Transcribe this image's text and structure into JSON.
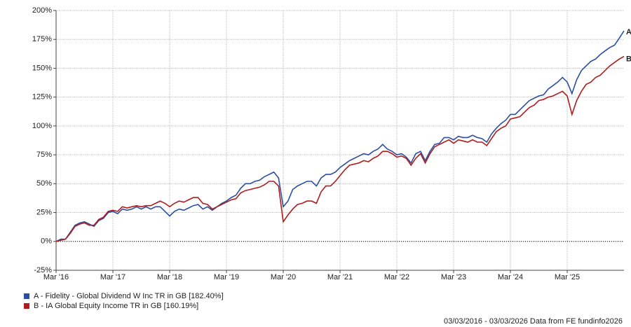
{
  "chart_data": {
    "type": "line",
    "x": [
      "2016-03",
      "2016-04",
      "2016-05",
      "2016-06",
      "2016-07",
      "2016-08",
      "2016-09",
      "2016-10",
      "2016-11",
      "2016-12",
      "2017-01",
      "2017-02",
      "2017-03",
      "2017-04",
      "2017-05",
      "2017-06",
      "2017-07",
      "2017-08",
      "2017-09",
      "2017-10",
      "2017-11",
      "2017-12",
      "2018-01",
      "2018-02",
      "2018-03",
      "2018-04",
      "2018-05",
      "2018-06",
      "2018-07",
      "2018-08",
      "2018-09",
      "2018-10",
      "2018-11",
      "2018-12",
      "2019-01",
      "2019-02",
      "2019-03",
      "2019-04",
      "2019-05",
      "2019-06",
      "2019-07",
      "2019-08",
      "2019-09",
      "2019-10",
      "2019-11",
      "2019-12",
      "2020-01",
      "2020-02",
      "2020-03",
      "2020-04",
      "2020-05",
      "2020-06",
      "2020-07",
      "2020-08",
      "2020-09",
      "2020-10",
      "2020-11",
      "2020-12",
      "2021-01",
      "2021-02",
      "2021-03",
      "2021-04",
      "2021-05",
      "2021-06",
      "2021-07",
      "2021-08",
      "2021-09",
      "2021-10",
      "2021-11",
      "2021-12",
      "2022-01",
      "2022-02",
      "2022-03",
      "2022-04",
      "2022-05",
      "2022-06",
      "2022-07",
      "2022-08",
      "2022-09",
      "2022-10",
      "2022-11",
      "2022-12",
      "2023-01",
      "2023-02",
      "2023-03",
      "2023-04",
      "2023-05",
      "2023-06",
      "2023-07",
      "2023-08",
      "2023-09",
      "2023-10",
      "2023-11",
      "2023-12",
      "2024-01",
      "2024-02",
      "2024-03",
      "2024-04",
      "2024-05",
      "2024-06",
      "2024-07",
      "2024-08",
      "2024-09",
      "2024-10",
      "2024-11",
      "2024-12",
      "2025-01",
      "2025-02",
      "2025-03",
      "2025-04",
      "2025-05",
      "2025-06",
      "2025-07",
      "2025-08",
      "2025-09",
      "2025-10",
      "2025-11",
      "2025-12",
      "2026-01",
      "2026-02",
      "2026-03"
    ],
    "series": [
      {
        "name": "A - Fidelity - Global Dividend W Inc TR in GB [182.40%]",
        "label": "A",
        "color": "#2b4ea2",
        "values": [
          0,
          2,
          2,
          8,
          14,
          16,
          17,
          15,
          13,
          18,
          20,
          25,
          26,
          24,
          28,
          27,
          28,
          30,
          28,
          30,
          28,
          30,
          30,
          26,
          22,
          26,
          28,
          27,
          29,
          31,
          32,
          28,
          30,
          27,
          30,
          33,
          35,
          38,
          40,
          46,
          50,
          50,
          52,
          53,
          56,
          58,
          60,
          55,
          30,
          35,
          45,
          48,
          50,
          52,
          52,
          48,
          55,
          58,
          58,
          60,
          64,
          67,
          70,
          72,
          74,
          76,
          75,
          78,
          80,
          84,
          80,
          78,
          75,
          76,
          73,
          68,
          76,
          78,
          70,
          78,
          84,
          85,
          90,
          90,
          88,
          91,
          90,
          90,
          92,
          90,
          89,
          86,
          93,
          98,
          102,
          105,
          110,
          110,
          114,
          118,
          122,
          124,
          126,
          127,
          132,
          135,
          138,
          142,
          138,
          128,
          140,
          148,
          152,
          156,
          158,
          162,
          165,
          168,
          170,
          176,
          182.4
        ]
      },
      {
        "name": "B - IA Global Equity Income TR in GB [160.19%]",
        "label": "B",
        "color": "#b01c1c",
        "values": [
          0,
          1,
          2,
          7,
          13,
          15,
          16,
          14,
          14,
          19,
          21,
          26,
          27,
          26,
          30,
          29,
          30,
          31,
          30,
          31,
          31,
          33,
          35,
          33,
          30,
          33,
          35,
          34,
          36,
          38,
          38,
          33,
          32,
          28,
          30,
          32,
          34,
          36,
          37,
          42,
          44,
          45,
          46,
          47,
          49,
          52,
          52,
          48,
          17,
          23,
          28,
          32,
          33,
          35,
          35,
          33,
          43,
          48,
          48,
          52,
          57,
          62,
          66,
          67,
          68,
          70,
          69,
          72,
          74,
          78,
          78,
          76,
          73,
          74,
          72,
          66,
          72,
          76,
          68,
          76,
          82,
          84,
          86,
          88,
          85,
          88,
          87,
          86,
          88,
          86,
          86,
          83,
          89,
          95,
          98,
          100,
          106,
          107,
          108,
          112,
          116,
          118,
          122,
          123,
          125,
          126,
          128,
          130,
          126,
          110,
          122,
          130,
          136,
          138,
          142,
          144,
          148,
          152,
          155,
          158,
          160.19
        ]
      }
    ],
    "xlim": [
      "2016-03",
      "2026-03"
    ],
    "xticks": [
      {
        "value": "2016-03",
        "label": "Mar '16"
      },
      {
        "value": "2017-03",
        "label": "Mar '17"
      },
      {
        "value": "2018-03",
        "label": "Mar '18"
      },
      {
        "value": "2019-03",
        "label": "Mar '19"
      },
      {
        "value": "2020-03",
        "label": "Mar '20"
      },
      {
        "value": "2021-03",
        "label": "Mar '21"
      },
      {
        "value": "2022-03",
        "label": "Mar '22"
      },
      {
        "value": "2023-03",
        "label": "Mar '23"
      },
      {
        "value": "2024-03",
        "label": "Mar '24"
      },
      {
        "value": "2025-03",
        "label": "Mar '25"
      }
    ],
    "ylim": [
      -25,
      200
    ],
    "yticks": [
      {
        "value": -25,
        "label": "-25%"
      },
      {
        "value": 0,
        "label": "0%"
      },
      {
        "value": 25,
        "label": "25%"
      },
      {
        "value": 50,
        "label": "50%"
      },
      {
        "value": 75,
        "label": "75%"
      },
      {
        "value": 100,
        "label": "100%"
      },
      {
        "value": 125,
        "label": "125%"
      },
      {
        "value": 150,
        "label": "150%"
      },
      {
        "value": 175,
        "label": "175%"
      },
      {
        "value": 200,
        "label": "200%"
      }
    ],
    "grid": true,
    "baseline": 0,
    "footer": "03/03/2016 - 03/03/2026 Data from FE fundinfo2026"
  }
}
